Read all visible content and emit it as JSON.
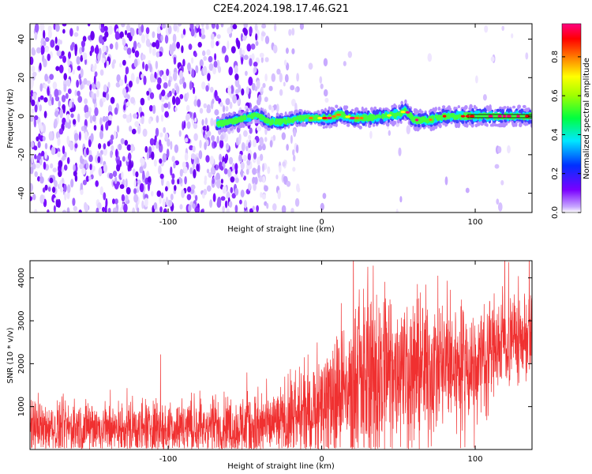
{
  "title": "C2E4.2024.198.17.46.G21",
  "chart_data": [
    {
      "type": "heatmap",
      "xlabel": "Height of straight line (km)",
      "ylabel": "Frequency (Hz)",
      "xlim": [
        -190,
        137
      ],
      "ylim": [
        -50,
        48
      ],
      "xticks": [
        -100,
        0,
        100
      ],
      "yticks": [
        -40,
        -20,
        0,
        20,
        40
      ],
      "colorbar": {
        "label": "Normalized spectral amplitude",
        "range": [
          0,
          0.97
        ],
        "ticks": [
          0.0,
          0.2,
          0.4,
          0.6,
          0.8
        ],
        "tick_labels": [
          "0.0",
          "0.2",
          "0.4",
          "0.6",
          "0.8"
        ],
        "colormap": [
          "#e8dcff",
          "#7a00ff",
          "#0040ff",
          "#00e8ff",
          "#00ff40",
          "#ffff00",
          "#ff8000",
          "#ff0000",
          "#ff0080"
        ]
      },
      "ridge": [
        {
          "x": -68,
          "y": -4
        },
        {
          "x": -60,
          "y": -3
        },
        {
          "x": -50,
          "y": -1
        },
        {
          "x": -42,
          "y": 1
        },
        {
          "x": -35,
          "y": -3
        },
        {
          "x": -25,
          "y": -3
        },
        {
          "x": -15,
          "y": -1
        },
        {
          "x": -5,
          "y": -1
        },
        {
          "x": 5,
          "y": -1
        },
        {
          "x": 12,
          "y": 1
        },
        {
          "x": 20,
          "y": -1
        },
        {
          "x": 30,
          "y": -1
        },
        {
          "x": 40,
          "y": 0
        },
        {
          "x": 50,
          "y": 1
        },
        {
          "x": 55,
          "y": 3
        },
        {
          "x": 60,
          "y": -2
        },
        {
          "x": 70,
          "y": -2
        },
        {
          "x": 80,
          "y": 0
        },
        {
          "x": 90,
          "y": 0
        },
        {
          "x": 100,
          "y": 0
        },
        {
          "x": 110,
          "y": 0
        },
        {
          "x": 120,
          "y": 0
        },
        {
          "x": 137,
          "y": 0
        }
      ]
    },
    {
      "type": "line",
      "xlabel": "Height of straight line (km)",
      "ylabel": "SNR (10 * v/v)",
      "xlim": [
        -190,
        137
      ],
      "ylim": [
        0,
        4400
      ],
      "xticks": [
        -100,
        0,
        100
      ],
      "yticks": [
        1000,
        2000,
        3000,
        4000
      ],
      "color": "#f03030",
      "envelope": [
        {
          "x": -190,
          "mean": 500,
          "spread": 300
        },
        {
          "x": -100,
          "mean": 500,
          "spread": 330
        },
        {
          "x": -40,
          "mean": 550,
          "spread": 380
        },
        {
          "x": -15,
          "mean": 750,
          "spread": 500
        },
        {
          "x": 0,
          "mean": 1100,
          "spread": 650
        },
        {
          "x": 15,
          "mean": 1400,
          "spread": 900
        },
        {
          "x": 40,
          "mean": 1800,
          "spread": 1100
        },
        {
          "x": 60,
          "mean": 1850,
          "spread": 900
        },
        {
          "x": 100,
          "mean": 2000,
          "spread": 700
        },
        {
          "x": 115,
          "mean": 2500,
          "spread": 600
        },
        {
          "x": 137,
          "mean": 2650,
          "spread": 500
        }
      ]
    }
  ]
}
